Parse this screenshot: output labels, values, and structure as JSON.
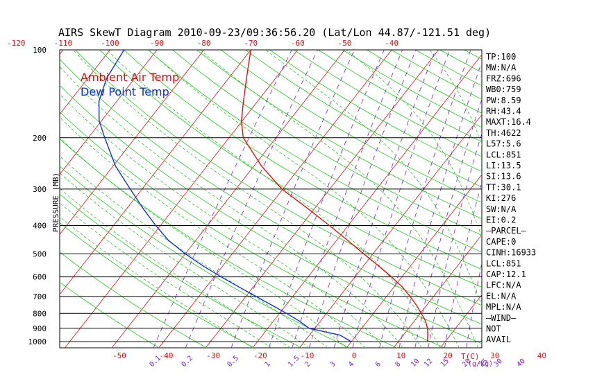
{
  "title": "AIRS SkewT Diagram 2010-09-23/09:36:56.20 (Lat/Lon 44.87/-121.51 deg)",
  "legend": {
    "air": "Ambient Air Temp",
    "dew": "Dew Point Temp"
  },
  "colors": {
    "air": "#e01010",
    "dew": "#1030e0",
    "isotherm": "#e01010",
    "dry_adiabat": "#22cc22",
    "moist_adiabat": "#22cc22",
    "mixing_ratio": "#7a1fd6",
    "isobar": "#000000"
  },
  "indices": [
    "TP:100",
    "MW:N/A",
    "FRZ:696",
    "WB0:759",
    "PW:8.59",
    "RH:43.4",
    "MAXT:16.4",
    "TH:4622",
    "L57:5.6",
    "LCL:851",
    "LI:13.5",
    "SI:13.6",
    "TT:30.1",
    "KI:276",
    "SW:N/A",
    "EI:0.2",
    "—PARCEL—",
    "CAPE:0",
    "CINH:16933",
    "LCL:851",
    "CAP:12.1",
    "LFC:N/A",
    "EL:N/A",
    "MPL:N/A",
    "—WIND—",
    "NOT",
    "AVAIL"
  ],
  "chart_data": {
    "type": "line",
    "title": "AIRS SkewT Diagram 2010-09-23/09:36:56.20 (Lat/Lon 44.87/-121.51 deg)",
    "ylabel": "PRESSURE (MB)",
    "xlabel": "T(C)",
    "mixing_ratio_label": "(g/kg)",
    "y_scale": "log",
    "ylim": [
      1050,
      100
    ],
    "pressure_ticks": [
      100,
      200,
      300,
      400,
      500,
      600,
      700,
      800,
      900,
      1000
    ],
    "bottom_temp_ticks": [
      -50,
      -40,
      -30,
      -20,
      -10,
      0,
      10,
      20,
      30,
      40
    ],
    "top_temp_ticks": [
      -120,
      -110,
      -100,
      -90,
      -80,
      -70,
      -60,
      -50,
      -40
    ],
    "mixing_ratio_ticks": [
      "0.1",
      "0.2",
      "0.5",
      "1",
      "1.5",
      "2",
      "3",
      "4",
      "6",
      "8",
      "10",
      "12",
      "15",
      "20",
      "25",
      "30",
      "40"
    ],
    "mixing_ratio_values": [
      0.1,
      0.2,
      0.5,
      1,
      1.5,
      2,
      3,
      4,
      6,
      8,
      10,
      12,
      15,
      20,
      25,
      30,
      40
    ],
    "series": [
      {
        "name": "Ambient Air Temp",
        "pressure": [
          1000,
          950,
          900,
          850,
          800,
          750,
          700,
          650,
          600,
          550,
          500,
          450,
          400,
          350,
          300,
          250,
          200,
          175,
          150,
          125,
          100
        ],
        "values": [
          16.2,
          15.2,
          14.0,
          12.4,
          10.2,
          7.8,
          5.0,
          1.8,
          -2.2,
          -6.8,
          -12.0,
          -17.6,
          -24.0,
          -31.4,
          -40.2,
          -48.4,
          -57.0,
          -60.2,
          -63.0,
          -66.2,
          -70.0
        ]
      },
      {
        "name": "Dew Point Temp",
        "pressure": [
          1000,
          950,
          900,
          850,
          800,
          750,
          700,
          650,
          600,
          550,
          500,
          450,
          400,
          350,
          300,
          250,
          200,
          175,
          150,
          125,
          100
        ],
        "values": [
          0.0,
          -3.5,
          -11.2,
          -14.5,
          -18.5,
          -23.0,
          -27.8,
          -33.0,
          -38.5,
          -44.2,
          -50.0,
          -55.8,
          -61.0,
          -66.5,
          -72.5,
          -79.5,
          -86.5,
          -90.5,
          -93.8,
          -96.0,
          -97.0
        ]
      }
    ]
  }
}
